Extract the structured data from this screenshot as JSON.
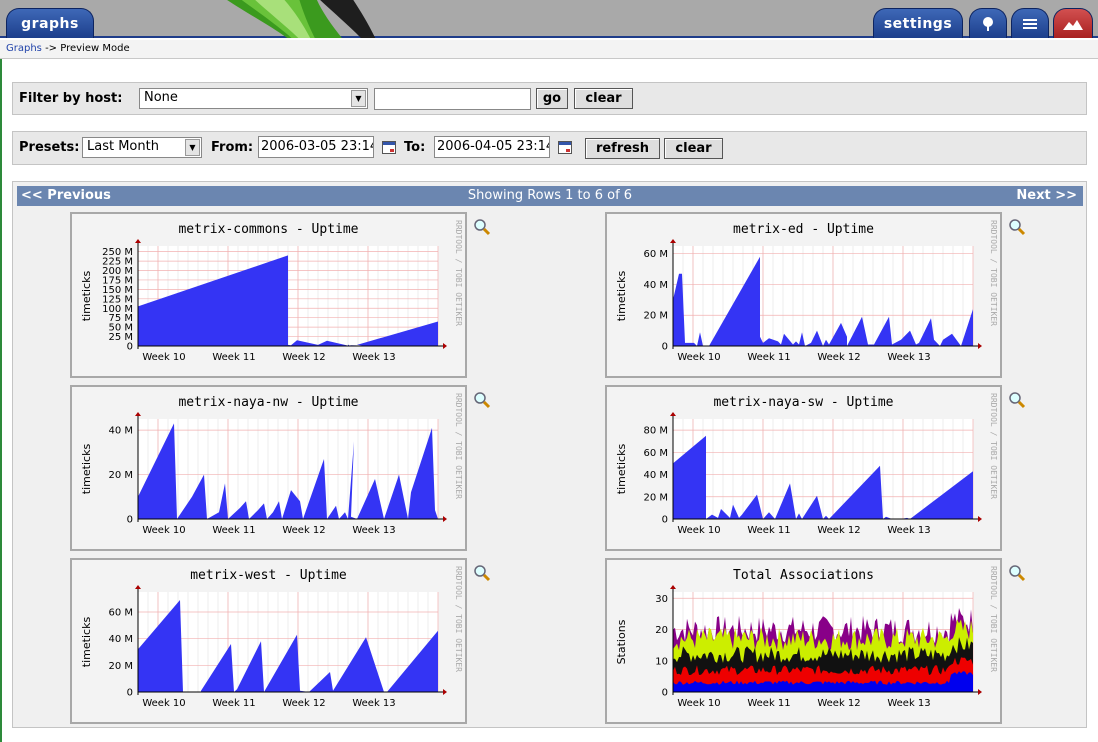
{
  "tabs": {
    "graphs": "graphs",
    "settings": "settings"
  },
  "icon_tabs": [
    "tree-icon",
    "list-icon",
    "preview-icon"
  ],
  "breadcrumb": {
    "link": "Graphs",
    "rest": "-> Preview Mode"
  },
  "filter": {
    "label": "Filter by host:",
    "host_selected": "None",
    "search_value": "",
    "go": "go",
    "clear": "clear"
  },
  "presets": {
    "label": "Presets:",
    "selected": "Last Month",
    "from_label": "From:",
    "from_value": "2006-03-05 23:14",
    "to_label": "To:",
    "to_value": "2006-04-05 23:14",
    "refresh": "refresh",
    "clear": "clear"
  },
  "nav": {
    "previous": "<< Previous",
    "showing": "Showing Rows 1 to 6 of 6",
    "next": "Next >>"
  },
  "watermark": "RRDTOOL / TOBI OETIKER",
  "colors": {
    "area": "#3434f4",
    "tab": "#2a4f9e",
    "nav": "#6b86b0"
  },
  "chart_data": [
    {
      "type": "area",
      "title": "metrix-commons - Uptime",
      "ylabel": "timeticks",
      "xlabels": [
        "Week 10",
        "Week 11",
        "Week 12",
        "Week 13"
      ],
      "yticks": [
        "0",
        "25 M",
        "50 M",
        "75 M",
        "100 M",
        "125 M",
        "150 M",
        "175 M",
        "200 M",
        "225 M",
        "250 M"
      ],
      "ylim": [
        0,
        265
      ],
      "series": [
        {
          "x": [
            0,
            0,
            0.5,
            0.5,
            0.51,
            0.53,
            0.6,
            0.63,
            0.7,
            0.7,
            0.705,
            0.71,
            0.75,
            0.73,
            1
          ],
          "y": [
            0,
            105,
            240,
            3,
            2,
            15,
            3,
            14,
            1,
            4,
            1,
            2,
            1,
            3,
            65
          ]
        }
      ]
    },
    {
      "type": "area",
      "title": "metrix-ed - Uptime",
      "ylabel": "timeticks",
      "xlabels": [
        "Week 10",
        "Week 11",
        "Week 12",
        "Week 13"
      ],
      "yticks": [
        "0",
        "20 M",
        "40 M",
        "60 M"
      ],
      "ylim": [
        0,
        65
      ],
      "series": [
        {
          "x": [
            0,
            0,
            0.02,
            0.03,
            0.04,
            0.07,
            0.08,
            0.09,
            0.1,
            0.12,
            0.29,
            0.29,
            0.3,
            0.32,
            0.35,
            0.36,
            0.37,
            0.4,
            0.41,
            0.42,
            0.43,
            0.44,
            0.46,
            0.48,
            0.5,
            0.51,
            0.52,
            0.56,
            0.58,
            0.58,
            0.63,
            0.65,
            0.67,
            0.72,
            0.73,
            0.76,
            0.79,
            0.81,
            0.82,
            0.86,
            0.87,
            0.89,
            0.9,
            0.93,
            0.96,
            1
          ],
          "y": [
            0,
            30,
            47,
            47,
            2,
            2,
            0,
            9,
            0,
            0,
            58,
            6,
            2,
            5,
            3,
            1,
            8,
            1,
            3,
            1,
            9,
            0,
            2,
            10,
            0,
            4,
            1,
            15,
            6,
            0,
            19,
            1,
            1,
            19,
            1,
            4,
            10,
            1,
            2,
            18,
            4,
            0,
            4,
            8,
            0,
            24
          ]
        }
      ]
    },
    {
      "type": "area",
      "title": "metrix-naya-nw - Uptime",
      "ylabel": "timeticks",
      "xlabels": [
        "Week 10",
        "Week 11",
        "Week 12",
        "Week 13"
      ],
      "yticks": [
        "0",
        "20 M",
        "40 M"
      ],
      "ylim": [
        0,
        45
      ],
      "series": [
        {
          "x": [
            0,
            0,
            0.12,
            0.13,
            0.18,
            0.22,
            0.23,
            0.27,
            0.29,
            0.3,
            0.34,
            0.36,
            0.37,
            0.4,
            0.42,
            0.43,
            0.45,
            0.47,
            0.48,
            0.51,
            0.54,
            0.55,
            0.62,
            0.63,
            0.66,
            0.67,
            0.69,
            0.7,
            0.72,
            0.71,
            0.73,
            0.79,
            0.82,
            0.83,
            0.87,
            0.9,
            0.91,
            0.98,
            0.99,
            1
          ],
          "y": [
            0,
            10,
            43,
            0,
            10,
            20,
            0,
            3,
            16,
            0,
            5,
            8,
            0,
            4,
            7,
            0,
            3,
            8,
            0,
            13,
            8,
            0,
            27,
            0,
            6,
            0,
            3,
            0,
            35,
            1,
            0,
            18,
            0,
            4,
            20,
            0,
            12,
            41,
            4,
            0
          ]
        }
      ]
    },
    {
      "type": "area",
      "title": "metrix-naya-sw - Uptime",
      "ylabel": "timeticks",
      "xlabels": [
        "Week 10",
        "Week 11",
        "Week 12",
        "Week 13"
      ],
      "yticks": [
        "0",
        "20 M",
        "40 M",
        "60 M",
        "80 M"
      ],
      "ylim": [
        0,
        90
      ],
      "series": [
        {
          "x": [
            0,
            0,
            0.11,
            0.11,
            0.13,
            0.15,
            0.16,
            0.19,
            0.2,
            0.22,
            0.23,
            0.28,
            0.3,
            0.32,
            0.34,
            0.39,
            0.41,
            0.42,
            0.43,
            0.48,
            0.5,
            0.51,
            0.52,
            0.69,
            0.7,
            0.71,
            0.73,
            0.76,
            0.78,
            0.79,
            1
          ],
          "y": [
            0,
            50,
            75,
            0,
            4,
            1,
            9,
            1,
            13,
            1,
            4,
            22,
            0,
            6,
            0,
            32,
            0,
            5,
            0,
            21,
            0,
            3,
            0,
            48,
            0,
            2,
            0,
            0,
            1,
            0,
            43
          ]
        }
      ]
    },
    {
      "type": "area",
      "title": "metrix-west - Uptime",
      "ylabel": "timeticks",
      "xlabels": [
        "Week 10",
        "Week 11",
        "Week 12",
        "Week 13"
      ],
      "yticks": [
        "0",
        "20 M",
        "40 M",
        "60 M"
      ],
      "ylim": [
        0,
        75
      ],
      "series": [
        {
          "x": [
            0,
            0,
            0.14,
            0.15,
            0.21,
            0.21,
            0.31,
            0.32,
            0.33,
            0.41,
            0.42,
            0.53,
            0.54,
            0.57,
            0.64,
            0.65,
            0.76,
            0.82,
            0.83,
            1
          ],
          "y": [
            0,
            32,
            69,
            0,
            0,
            1,
            36,
            0,
            2,
            38,
            0,
            43,
            1,
            0,
            15,
            1,
            41,
            0,
            0,
            46
          ]
        }
      ]
    },
    {
      "type": "area",
      "title": "Total Associations",
      "ylabel": "Stations",
      "xlabels": [
        "Week 10",
        "Week 11",
        "Week 12",
        "Week 13"
      ],
      "yticks": [
        "0",
        "10",
        "20",
        "30"
      ],
      "ylim": [
        0,
        32
      ],
      "series": [
        {
          "name": "blue",
          "color": "#0000ee",
          "level": 3
        },
        {
          "name": "red",
          "color": "#ee0000",
          "level": 7
        },
        {
          "name": "black",
          "color": "#111111",
          "level": 12
        },
        {
          "name": "yellow",
          "color": "#ccee00",
          "level": 17
        },
        {
          "name": "purple",
          "color": "#880088",
          "level": 20
        }
      ]
    }
  ]
}
